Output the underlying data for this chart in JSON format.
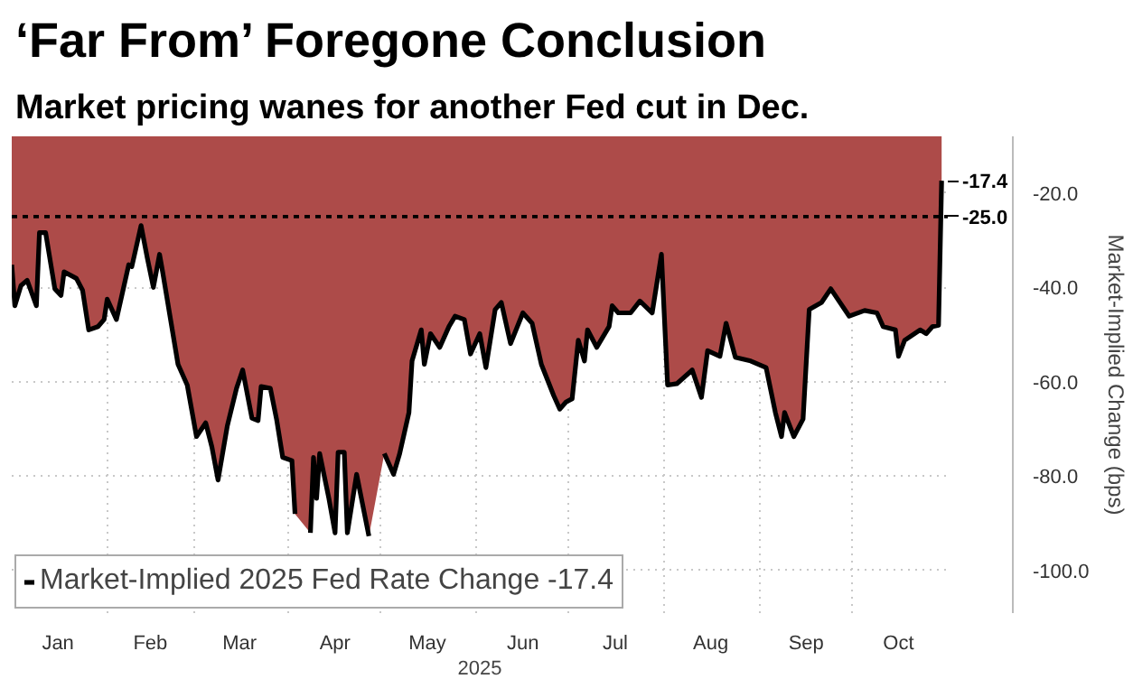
{
  "chart_data": {
    "type": "area",
    "title": "‘Far From’ Foregone Conclusion",
    "subtitle": "Market pricing wanes for another Fed cut in Dec.",
    "xlabel": "2025",
    "ylabel": "Market-Implied Change (bps)",
    "x": [
      "2025-01-01",
      "2025-01-02",
      "2025-01-04",
      "2025-01-06",
      "2025-01-09",
      "2025-01-10",
      "2025-01-12",
      "2025-01-15",
      "2025-01-17",
      "2025-01-18",
      "2025-01-22",
      "2025-01-24",
      "2025-01-26",
      "2025-01-29",
      "2025-01-31",
      "2025-02-01",
      "2025-02-04",
      "2025-02-08",
      "2025-02-09",
      "2025-02-12",
      "2025-02-14",
      "2025-02-16",
      "2025-02-18",
      "2025-02-19",
      "2025-02-24",
      "2025-02-27",
      "2025-03-02",
      "2025-03-05",
      "2025-03-07",
      "2025-03-09",
      "2025-03-12",
      "2025-03-15",
      "2025-03-17",
      "2025-03-20",
      "2025-03-22",
      "2025-03-23",
      "2025-03-26",
      "2025-03-28",
      "2025-03-30",
      "2025-04-02",
      "2025-04-03",
      "2025-04-05",
      "2025-04-08",
      "2025-04-09",
      "2025-04-10",
      "2025-04-11",
      "2025-04-14",
      "2025-04-16",
      "2025-04-17",
      "2025-04-19",
      "2025-04-20",
      "2025-04-23",
      "2025-04-27",
      "2025-04-29",
      "2025-05-02",
      "2025-05-05",
      "2025-05-07",
      "2025-05-10",
      "2025-05-11",
      "2025-05-14",
      "2025-05-15",
      "2025-05-17",
      "2025-05-20",
      "2025-05-23",
      "2025-05-25",
      "2025-05-28",
      "2025-05-30",
      "2025-06-02",
      "2025-06-04",
      "2025-06-07",
      "2025-06-09",
      "2025-06-12",
      "2025-06-16",
      "2025-06-19",
      "2025-06-22",
      "2025-06-26",
      "2025-06-28",
      "2025-06-30",
      "2025-07-02",
      "2025-07-04",
      "2025-07-06",
      "2025-07-07",
      "2025-07-10",
      "2025-07-14",
      "2025-07-15",
      "2025-07-17",
      "2025-07-21",
      "2025-07-24",
      "2025-07-28",
      "2025-07-31",
      "2025-08-02",
      "2025-08-05",
      "2025-08-10",
      "2025-08-13",
      "2025-08-15",
      "2025-08-19",
      "2025-08-21",
      "2025-08-24",
      "2025-08-29",
      "2025-09-03",
      "2025-09-06",
      "2025-09-08",
      "2025-09-09",
      "2025-09-12",
      "2025-09-15",
      "2025-09-17",
      "2025-09-21",
      "2025-09-24",
      "2025-09-30",
      "2025-10-05",
      "2025-10-09",
      "2025-10-11",
      "2025-10-15",
      "2025-10-16",
      "2025-10-18",
      "2025-10-23",
      "2025-10-25",
      "2025-10-27",
      "2025-10-29",
      "2025-10-30"
    ],
    "series": [
      {
        "name": "Market-Implied 2025 Fed Rate Change -17.4",
        "color": "#ad4b49",
        "values": [
          -35.2,
          -43.9,
          -39.6,
          -38.5,
          -43.9,
          -28.4,
          -28.4,
          -40.3,
          -41.7,
          -36.7,
          -38.1,
          -40.6,
          -49.0,
          -48.3,
          -46.8,
          -42.5,
          -46.8,
          -35.2,
          -35.6,
          -26.9,
          -33.7,
          -40.0,
          -33.0,
          -36.7,
          -56.3,
          -60.7,
          -71.6,
          -68.7,
          -73.8,
          -80.8,
          -69.4,
          -61.4,
          -57.5,
          -67.7,
          -68.2,
          -61.0,
          -61.4,
          -67.9,
          -76.0,
          -76.7,
          -88.0,
          null,
          -92.0,
          -76.0,
          -84.7,
          -75.2,
          -84.7,
          -92.0,
          -74.9,
          -74.9,
          -92.0,
          -79.6,
          -92.7,
          null,
          -75.2,
          -79.6,
          -75.2,
          -66.5,
          -55.6,
          -49.0,
          -56.3,
          -49.8,
          -52.7,
          -48.3,
          -46.1,
          -46.8,
          -54.1,
          -49.8,
          -57.0,
          -44.7,
          -43.2,
          -51.9,
          -45.4,
          -47.6,
          -56.3,
          -62.9,
          -65.8,
          -64.3,
          -63.6,
          -51.2,
          -55.6,
          -49.0,
          -52.7,
          -48.3,
          -43.9,
          -45.4,
          -45.4,
          -42.9,
          -45.4,
          -33.0,
          -60.7,
          -60.4,
          -57.5,
          -63.3,
          -53.4,
          -54.6,
          -47.6,
          -54.8,
          -55.6,
          -57.0,
          -66.5,
          -71.6,
          -66.5,
          -71.6,
          -67.9,
          -44.7,
          -43.2,
          -40.3,
          -46.1,
          -44.9,
          -45.4,
          -48.3,
          -49.0,
          -54.6,
          -51.2,
          -49.0,
          -49.8,
          -48.3,
          -48.0,
          -17.4
        ]
      }
    ],
    "xlim": [
      "2025-01-01",
      "2025-11-01"
    ],
    "xticks": [
      {
        "value": "2025-01-16",
        "label": "Jan"
      },
      {
        "value": "2025-02-01",
        "label": null
      },
      {
        "value": "2025-02-15",
        "label": "Feb"
      },
      {
        "value": "2025-03-01",
        "label": null
      },
      {
        "value": "2025-03-16",
        "label": "Mar"
      },
      {
        "value": "2025-04-01",
        "label": null
      },
      {
        "value": "2025-04-16",
        "label": "Apr"
      },
      {
        "value": "2025-05-01",
        "label": null
      },
      {
        "value": "2025-05-16",
        "label": "May"
      },
      {
        "value": "2025-06-01",
        "label": null
      },
      {
        "value": "2025-06-16",
        "label": "Jun"
      },
      {
        "value": "2025-07-01",
        "label": null
      },
      {
        "value": "2025-07-16",
        "label": "Jul"
      },
      {
        "value": "2025-08-01",
        "label": null
      },
      {
        "value": "2025-08-16",
        "label": "Aug"
      },
      {
        "value": "2025-09-01",
        "label": null
      },
      {
        "value": "2025-09-16",
        "label": "Sep"
      },
      {
        "value": "2025-10-01",
        "label": null
      },
      {
        "value": "2025-10-16",
        "label": "Oct"
      }
    ],
    "ylim": [
      -109,
      -8
    ],
    "yticks": [
      {
        "value": -20,
        "label": "-20.0"
      },
      {
        "value": -40,
        "label": "-40.0"
      },
      {
        "value": -60,
        "label": "-60.0"
      },
      {
        "value": -80,
        "label": "-80.0"
      },
      {
        "value": -100,
        "label": "-100.0"
      }
    ],
    "ref_lines": [
      {
        "axis": "y",
        "value": -25,
        "label": "-25.0",
        "color": "#000000",
        "line_style": "dotted"
      }
    ],
    "annotations": [
      {
        "text": "-17.4",
        "x": "2025-10-30",
        "y": -17.4
      }
    ],
    "grid": true,
    "legend": "bottom left",
    "marker": "none",
    "line_style": "solid"
  }
}
